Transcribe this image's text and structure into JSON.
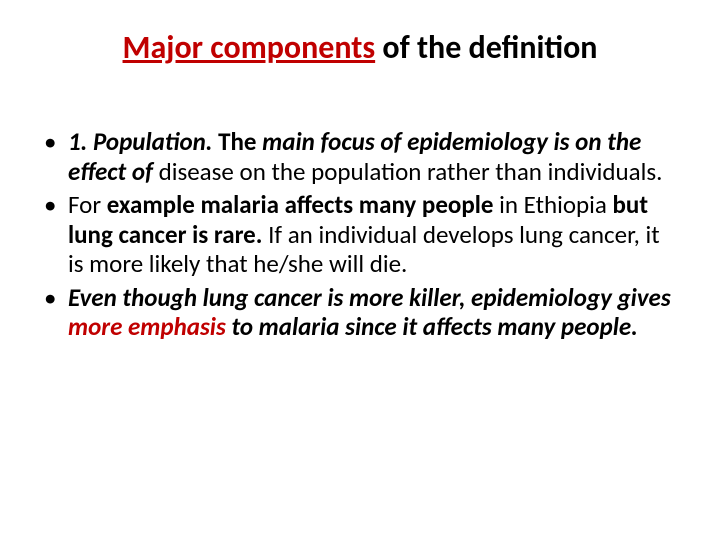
{
  "title": {
    "part1": "Major components",
    "part2": " of the definition"
  },
  "bullets": {
    "b1": {
      "s1": "1. Population. ",
      "s2": "The",
      "s3": " main focus of epidemiology is on the effect of ",
      "s4": "disease on the population rather than individuals."
    },
    "b2": {
      "s1": "For ",
      "s2": "example malaria affects many people ",
      "s3": "in Ethiopia ",
      "s4": "but lung cancer is rare. ",
      "s5": "If an individual develops lung cancer, it is more likely that he/she will die."
    },
    "b3": {
      "s1": "Even though lung cancer is more killer, epidemiology gives ",
      "s2": "more emphasis ",
      "s3": "to malaria since it affects many people."
    }
  }
}
